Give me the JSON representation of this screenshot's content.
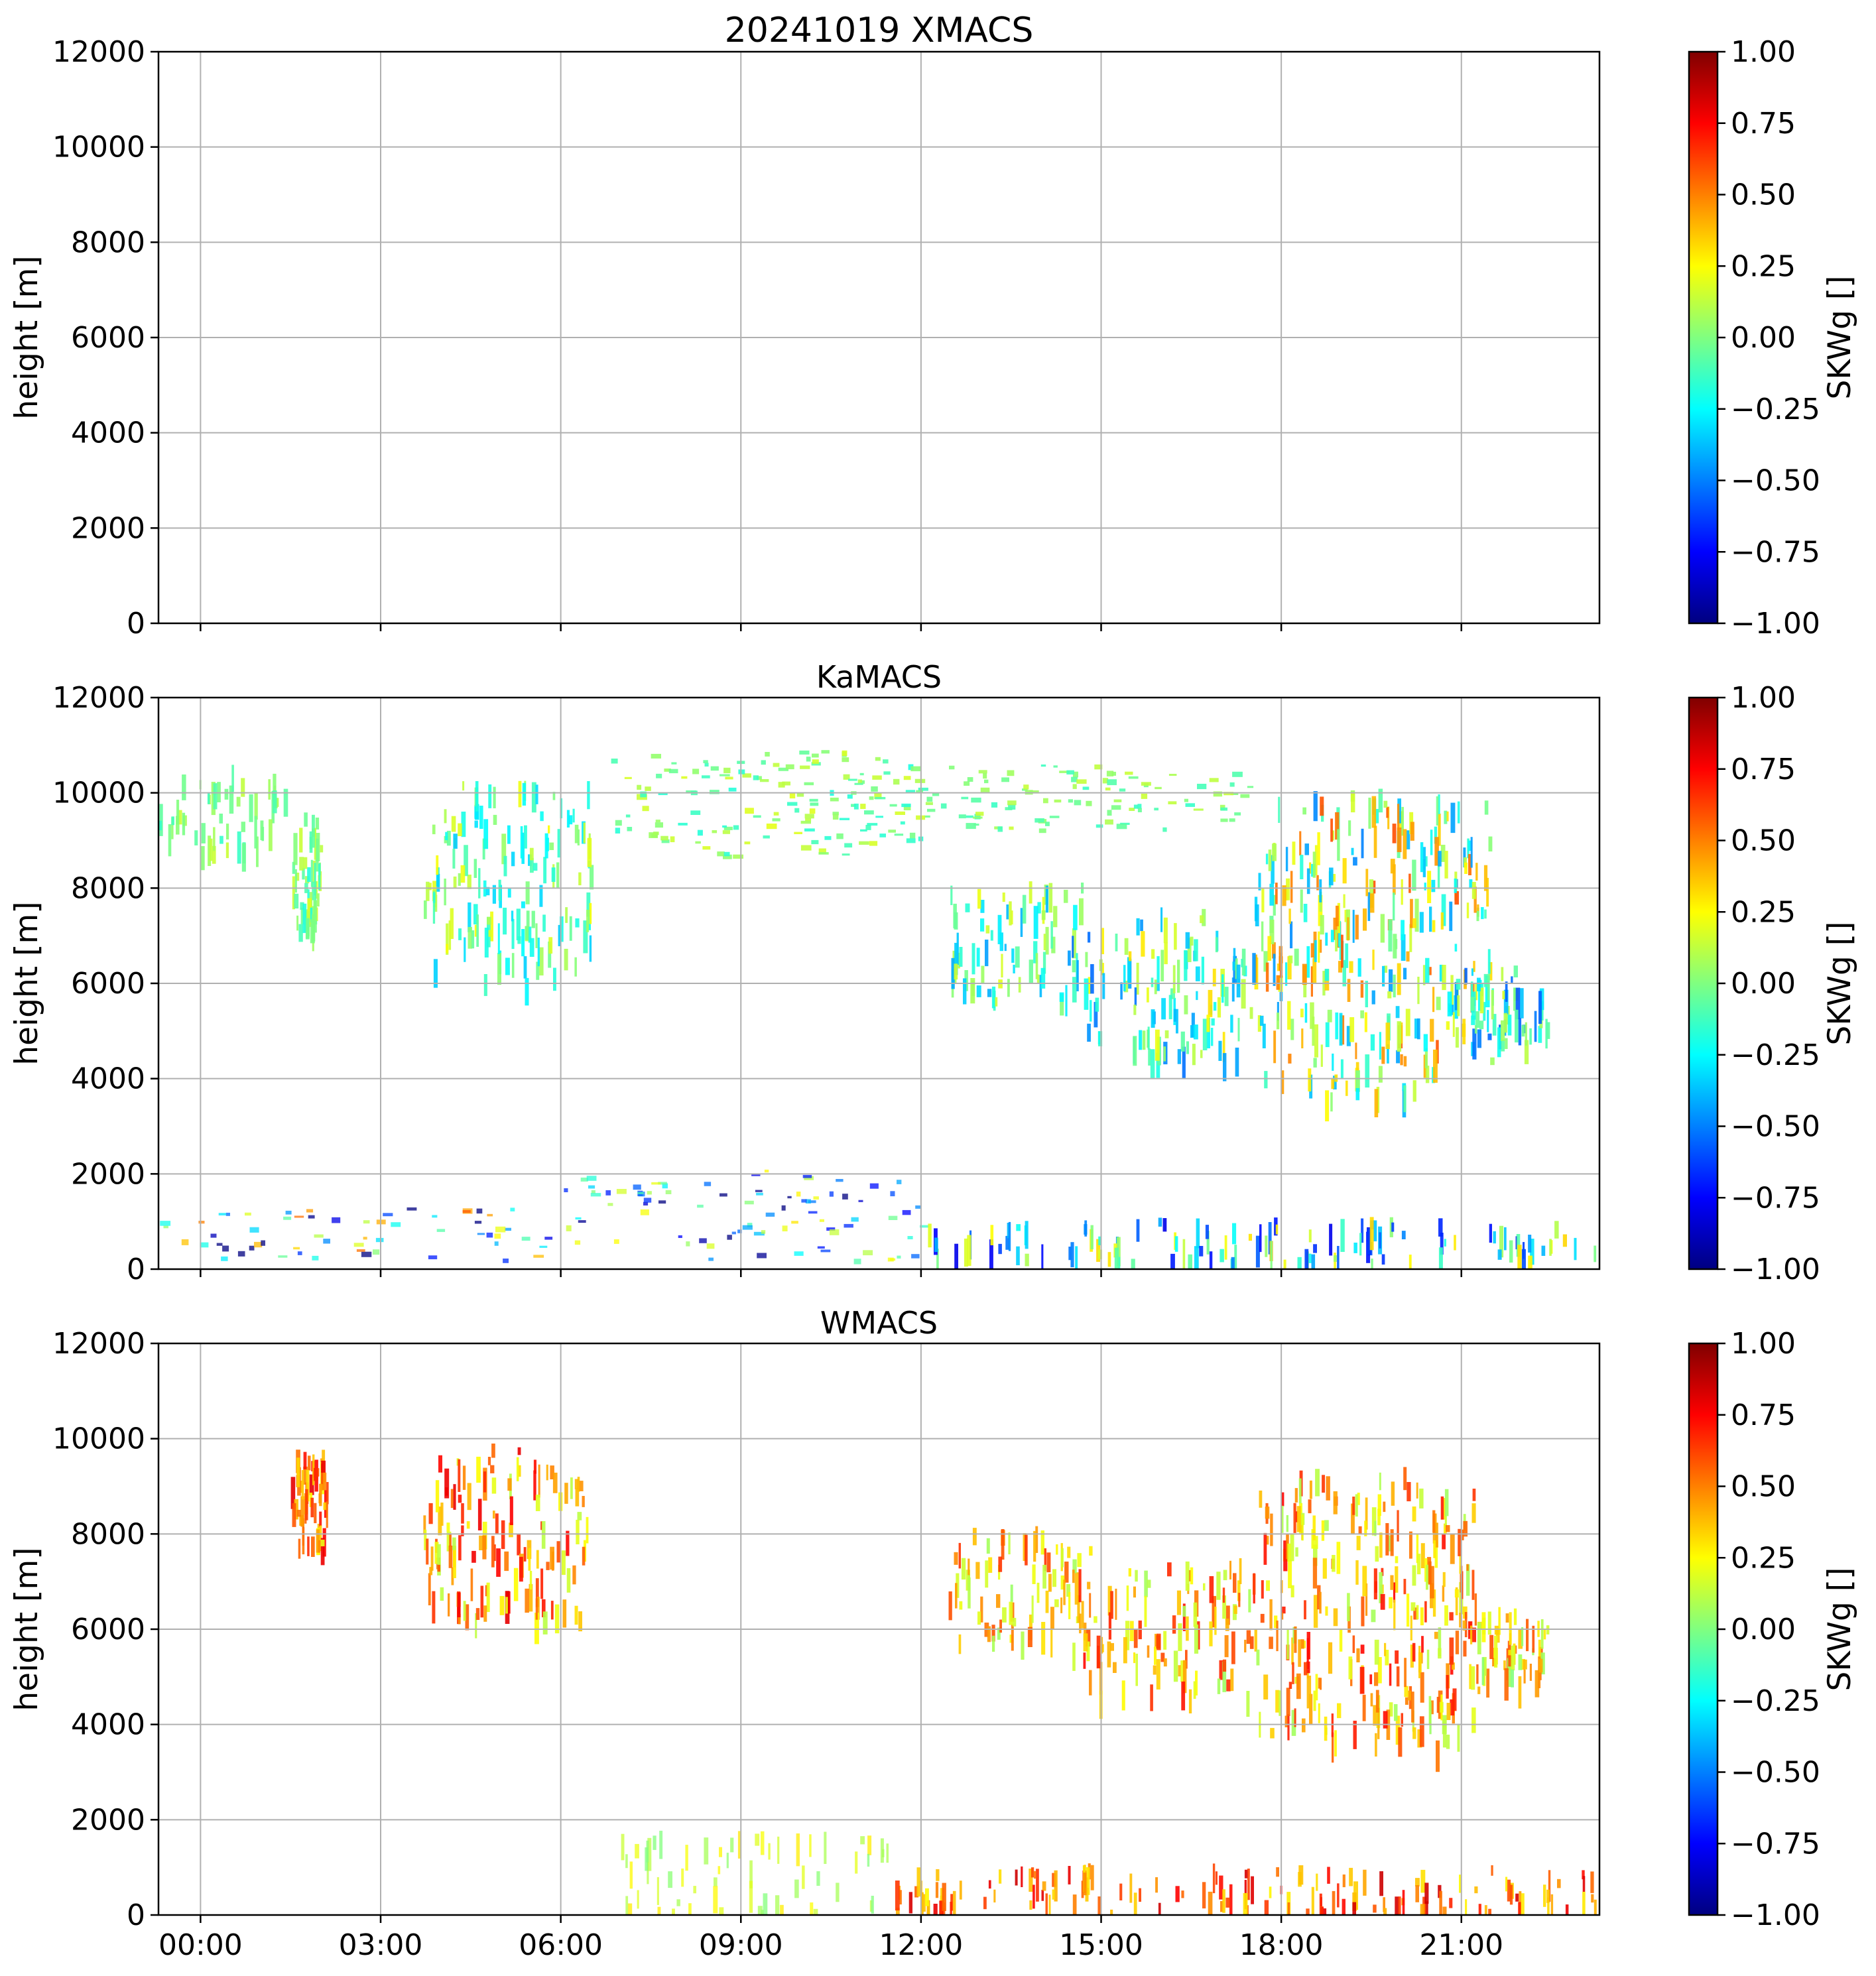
{
  "figure": {
    "colormap": "jet",
    "grid": true,
    "x_tick_labels": [
      "00:00",
      "03:00",
      "06:00",
      "09:00",
      "12:00",
      "15:00",
      "18:00",
      "21:00"
    ],
    "x_ticks_hours": [
      0,
      3,
      6,
      9,
      12,
      15,
      18,
      21
    ],
    "x_range_hours": [
      -0.7,
      23.3
    ]
  },
  "chart_data": [
    {
      "type": "heatmap",
      "title": "20241019 XMACS",
      "ylabel": "height [m]",
      "ylim": [
        0,
        12000
      ],
      "y_ticks": [
        0,
        2000,
        4000,
        6000,
        8000,
        10000,
        12000
      ],
      "show_x_tick_labels": false,
      "colorbar": {
        "label": "SKWg []",
        "range": [
          -1.0,
          1.0
        ],
        "tick_labels": [
          "1.00",
          "0.75",
          "0.50",
          "0.25",
          "0.00",
          "−0.25",
          "−0.50",
          "−0.75",
          "−1.00"
        ]
      },
      "echo_regions": []
    },
    {
      "type": "heatmap",
      "title": "KaMACS",
      "ylabel": "height [m]",
      "ylim": [
        0,
        12000
      ],
      "y_ticks": [
        0,
        2000,
        4000,
        6000,
        8000,
        10000,
        12000
      ],
      "show_x_tick_labels": false,
      "colorbar": {
        "label": "SKWg []",
        "range": [
          -1.0,
          1.0
        ],
        "tick_labels": [
          "1.00",
          "0.75",
          "0.50",
          "0.25",
          "0.00",
          "−0.25",
          "−0.50",
          "−0.75",
          "−1.00"
        ]
      },
      "echo_regions": [
        {
          "t0": -0.7,
          "t1": 1.5,
          "h0": 8800,
          "h1": 10600,
          "skw": 0.0,
          "spread": 0.15,
          "streaks": true
        },
        {
          "t0": 1.5,
          "t1": 2.0,
          "h0": 7200,
          "h1": 9700,
          "skw": 0.0,
          "spread": 0.2,
          "streaks": true
        },
        {
          "t0": 3.7,
          "t1": 6.5,
          "h0": 6100,
          "h1": 10300,
          "skw": -0.05,
          "spread": 0.3,
          "streaks": true
        },
        {
          "t0": 6.8,
          "t1": 12.4,
          "h0": 8700,
          "h1": 10900,
          "skw": 0.0,
          "spread": 0.2,
          "streaks": false
        },
        {
          "t0": 12.0,
          "t1": 17.5,
          "h0": 9200,
          "h1": 10600,
          "skw": 0.0,
          "spread": 0.15,
          "streaks": false
        },
        {
          "t0": 12.4,
          "t1": 14.8,
          "h0": 5600,
          "h1": 8200,
          "skw": -0.1,
          "spread": 0.35,
          "streaks": true
        },
        {
          "t0": 14.5,
          "t1": 17.5,
          "h0": 4500,
          "h1": 7600,
          "skw": -0.1,
          "spread": 0.45,
          "streaks": true
        },
        {
          "t0": 17.5,
          "t1": 21.5,
          "h0": 3700,
          "h1": 10100,
          "skw": 0.05,
          "spread": 0.55,
          "streaks": true
        },
        {
          "t0": 21.0,
          "t1": 22.5,
          "h0": 4800,
          "h1": 6400,
          "skw": -0.2,
          "spread": 0.4,
          "streaks": true
        },
        {
          "t0": -0.7,
          "t1": 5.8,
          "h0": 200,
          "h1": 1300,
          "skw": -0.3,
          "spread": 0.9,
          "streaks": false,
          "sparse": true
        },
        {
          "t0": 6.0,
          "t1": 12.0,
          "h0": 200,
          "h1": 2200,
          "skw": -0.4,
          "spread": 0.7,
          "streaks": false,
          "sparse": true
        },
        {
          "t0": 12.0,
          "t1": 23.3,
          "h0": 200,
          "h1": 1100,
          "skw": -0.2,
          "spread": 0.6,
          "streaks": true
        }
      ]
    },
    {
      "type": "heatmap",
      "title": "WMACS",
      "ylabel": "height [m]",
      "ylim": [
        0,
        12000
      ],
      "y_ticks": [
        0,
        2000,
        4000,
        6000,
        8000,
        10000,
        12000
      ],
      "show_x_tick_labels": true,
      "colorbar": {
        "label": "SKWg []",
        "range": [
          -1.0,
          1.0
        ],
        "tick_labels": [
          "1.00",
          "0.75",
          "0.50",
          "0.25",
          "0.00",
          "−0.25",
          "−0.50",
          "−0.75",
          "−1.00"
        ]
      },
      "echo_regions": [
        {
          "t0": 1.5,
          "t1": 2.1,
          "h0": 7800,
          "h1": 9800,
          "skw": 0.5,
          "spread": 0.3,
          "streaks": true
        },
        {
          "t0": 3.7,
          "t1": 6.5,
          "h0": 6300,
          "h1": 9900,
          "skw": 0.45,
          "spread": 0.35,
          "streaks": true
        },
        {
          "t0": 12.4,
          "t1": 14.8,
          "h0": 5800,
          "h1": 8200,
          "skw": 0.35,
          "spread": 0.3,
          "streaks": true
        },
        {
          "t0": 14.5,
          "t1": 17.5,
          "h0": 4700,
          "h1": 7500,
          "skw": 0.4,
          "spread": 0.35,
          "streaks": true
        },
        {
          "t0": 17.5,
          "t1": 21.3,
          "h0": 3600,
          "h1": 9500,
          "skw": 0.4,
          "spread": 0.35,
          "streaks": true
        },
        {
          "t0": 21.0,
          "t1": 22.5,
          "h0": 5000,
          "h1": 6500,
          "skw": 0.3,
          "spread": 0.3,
          "streaks": true
        },
        {
          "t0": 7.0,
          "t1": 11.5,
          "h0": 100,
          "h1": 1900,
          "skw": 0.15,
          "spread": 0.15,
          "streaks": true,
          "sparse": true
        },
        {
          "t0": 11.5,
          "t1": 23.3,
          "h0": 100,
          "h1": 1100,
          "skw": 0.55,
          "spread": 0.3,
          "streaks": true
        }
      ]
    }
  ]
}
